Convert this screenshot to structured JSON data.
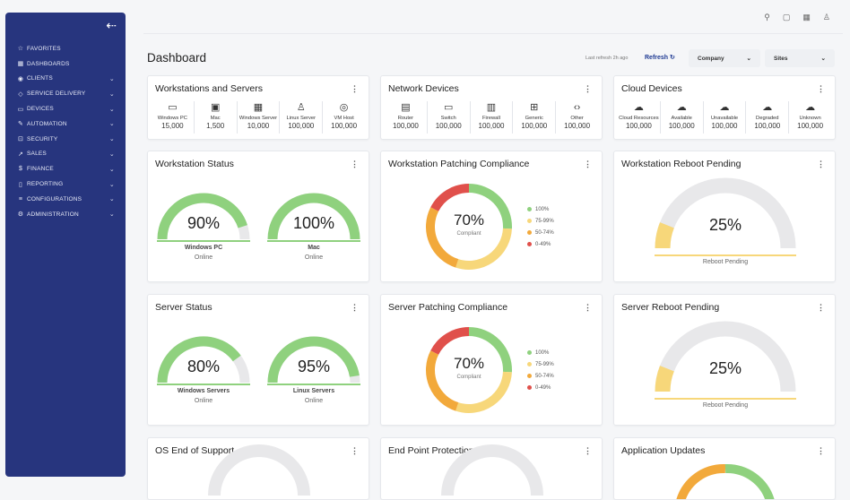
{
  "sidebar": {
    "items": [
      {
        "label": "FAVORITES",
        "icon": "star-icon",
        "glyph": "☆",
        "chev": ""
      },
      {
        "label": "DASHBOARDS",
        "icon": "grid-icon",
        "glyph": "▦",
        "chev": ""
      },
      {
        "label": "CLIENTS",
        "icon": "user-icon",
        "glyph": "◉",
        "chev": "⌄"
      },
      {
        "label": "SERVICE DELIVERY",
        "icon": "tag-icon",
        "glyph": "◇",
        "chev": "⌄"
      },
      {
        "label": "DEVICES",
        "icon": "monitor-icon",
        "glyph": "▭",
        "chev": "⌄"
      },
      {
        "label": "AUTOMATION",
        "icon": "wrench-icon",
        "glyph": "✎",
        "chev": "⌄"
      },
      {
        "label": "SECURITY",
        "icon": "lock-icon",
        "glyph": "⊡",
        "chev": "⌄"
      },
      {
        "label": "SALES",
        "icon": "trend-icon",
        "glyph": "↗",
        "chev": "⌄"
      },
      {
        "label": "FINANCE",
        "icon": "dollar-icon",
        "glyph": "$",
        "chev": "⌄"
      },
      {
        "label": "REPORTING",
        "icon": "document-icon",
        "glyph": "▯",
        "chev": "⌄"
      },
      {
        "label": "CONFIGURATIONS",
        "icon": "sliders-icon",
        "glyph": "≡",
        "chev": "⌄"
      },
      {
        "label": "ADMINISTRATION",
        "icon": "gear-icon",
        "glyph": "⚙",
        "chev": "⌄"
      }
    ]
  },
  "header": {
    "title": "Dashboard",
    "last_refresh": "Last refresh 2h ago",
    "refresh_label": "Refresh",
    "company_select": "Company",
    "sites_select": "Sites"
  },
  "cards": {
    "workstations_servers": {
      "title": "Workstations and Servers",
      "devices": [
        {
          "name": "Windows PC",
          "value": "15,000",
          "icon": "▭"
        },
        {
          "name": "Mac",
          "value": "1,500",
          "icon": "▣"
        },
        {
          "name": "Windows Server",
          "value": "10,000",
          "icon": "▦"
        },
        {
          "name": "Linux Server",
          "value": "100,000",
          "icon": "♙"
        },
        {
          "name": "VM Host",
          "value": "100,000",
          "icon": "◎"
        }
      ]
    },
    "network_devices": {
      "title": "Network Devices",
      "devices": [
        {
          "name": "Router",
          "value": "100,000",
          "icon": "▤"
        },
        {
          "name": "Switch",
          "value": "100,000",
          "icon": "▭"
        },
        {
          "name": "Firewall",
          "value": "100,000",
          "icon": "▥"
        },
        {
          "name": "Generic",
          "value": "100,000",
          "icon": "⊞"
        },
        {
          "name": "Other",
          "value": "100,000",
          "icon": "‹›"
        }
      ]
    },
    "cloud_devices": {
      "title": "Cloud Devices",
      "devices": [
        {
          "name": "Cloud Resources",
          "value": "100,000",
          "icon": "☁"
        },
        {
          "name": "Available",
          "value": "100,000",
          "icon": "☁"
        },
        {
          "name": "Unavailable",
          "value": "100,000",
          "icon": "☁"
        },
        {
          "name": "Degraded",
          "value": "100,000",
          "icon": "☁"
        },
        {
          "name": "Unknown",
          "value": "100,000",
          "icon": "☁"
        }
      ]
    },
    "workstation_status": {
      "title": "Workstation Status",
      "gauges": [
        {
          "pct": "90%",
          "value": 0.9,
          "label": "Windows PC",
          "sub": "Online"
        },
        {
          "pct": "100%",
          "value": 1.0,
          "label": "Mac",
          "sub": "Online"
        }
      ]
    },
    "workstation_patching": {
      "title": "Workstation Patching Compliance",
      "pct": "70%",
      "sub": "Compliant",
      "legend": [
        {
          "label": "100%",
          "color": "#8fd17e"
        },
        {
          "label": "75-99%",
          "color": "#f7d77a"
        },
        {
          "label": "50-74%",
          "color": "#f2a93b"
        },
        {
          "label": "0-49%",
          "color": "#e0504b"
        }
      ]
    },
    "workstation_reboot": {
      "title": "Workstation Reboot Pending",
      "pct": "25%",
      "value": 0.25,
      "sub": "Reboot Pending"
    },
    "server_status": {
      "title": "Server Status",
      "gauges": [
        {
          "pct": "80%",
          "value": 0.8,
          "label": "Windows Servers",
          "sub": "Online"
        },
        {
          "pct": "95%",
          "value": 0.95,
          "label": "Linux Servers",
          "sub": "Online"
        }
      ]
    },
    "server_patching": {
      "title": "Server Patching Compliance",
      "pct": "70%",
      "sub": "Compliant",
      "legend": [
        {
          "label": "100%",
          "color": "#8fd17e"
        },
        {
          "label": "75-99%",
          "color": "#f7d77a"
        },
        {
          "label": "50-74%",
          "color": "#f2a93b"
        },
        {
          "label": "0-49%",
          "color": "#e0504b"
        }
      ]
    },
    "server_reboot": {
      "title": "Server Reboot Pending",
      "pct": "25%",
      "value": 0.25,
      "sub": "Reboot Pending"
    },
    "os_eos": {
      "title": "OS End of Support"
    },
    "endpoint": {
      "title": "End Point Protection"
    },
    "app_updates": {
      "title": "Application Updates"
    }
  },
  "colors": {
    "sidebar": "#27357e",
    "gauge_green": "#8fd17e",
    "gauge_track": "#e8e8ea",
    "reboot_yellow": "#f7d77a"
  }
}
